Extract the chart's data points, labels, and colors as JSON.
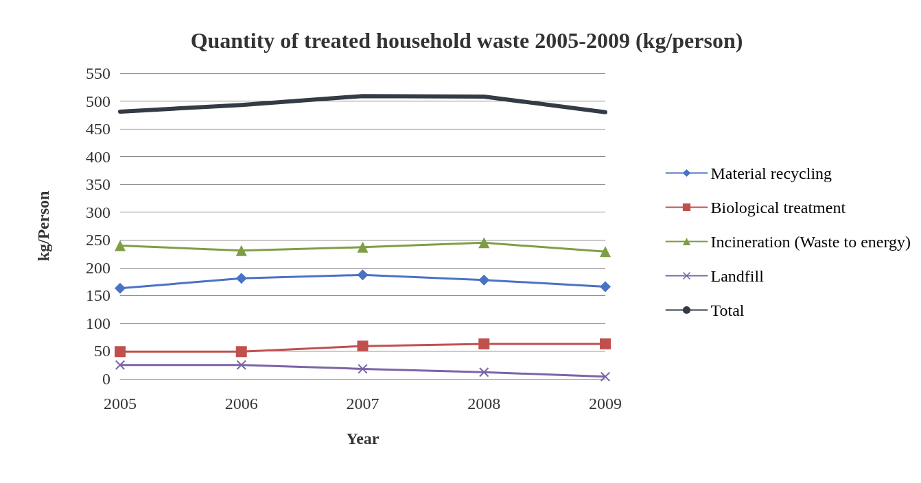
{
  "chart_data": {
    "type": "line",
    "title": "Quantity of treated household waste 2005-2009 (kg/person)",
    "xlabel": "Year",
    "ylabel": "kg/Person",
    "categories": [
      "2005",
      "2006",
      "2007",
      "2008",
      "2009"
    ],
    "series": [
      {
        "name": "Material recycling",
        "color": "#4a72c4",
        "marker": "diamond",
        "values": [
          163,
          181,
          187,
          178,
          166
        ]
      },
      {
        "name": "Biological treatment",
        "color": "#c0504d",
        "marker": "square",
        "values": [
          49,
          49,
          59,
          63,
          63
        ]
      },
      {
        "name": "Incineration (Waste to energy)",
        "color": "#7e9e45",
        "marker": "triangle",
        "values": [
          240,
          231,
          237,
          245,
          229
        ]
      },
      {
        "name": "Landfill",
        "color": "#7a64a8",
        "marker": "cross",
        "values": [
          25,
          25,
          18,
          12,
          4
        ]
      },
      {
        "name": "Total",
        "color": "#333b45",
        "marker": "none",
        "values": [
          481,
          493,
          509,
          508,
          480
        ]
      }
    ],
    "ylim": [
      0,
      550
    ],
    "yticks": [
      0,
      50,
      100,
      150,
      200,
      250,
      300,
      350,
      400,
      450,
      500,
      550
    ],
    "grid": "y",
    "legend": "right"
  }
}
